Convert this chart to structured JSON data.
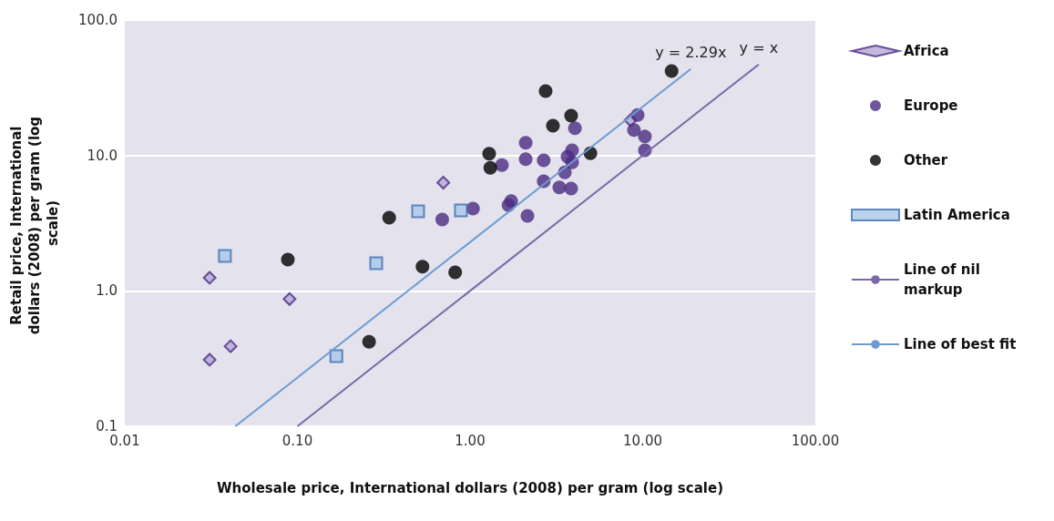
{
  "chart_data": {
    "type": "scatter",
    "xlabel": "Wholesale price, International dollars (2008) per gram (log scale)",
    "ylabel": "Retail price, International dollars (2008) per gram (log scale)",
    "log": "xy",
    "grid": "y",
    "legend": "right",
    "xlim": [
      0.01,
      100
    ],
    "xticks": [
      0.01,
      {
        "value": 0.1,
        "label": "0.10"
      },
      {
        "value": 1,
        "label": "1.00"
      },
      {
        "value": 10,
        "label": "10.00"
      },
      {
        "value": 100,
        "label": "100.00"
      }
    ],
    "ylim": [
      0.1,
      100
    ],
    "yticks": [
      0.1,
      {
        "value": 1,
        "label": "1.0"
      },
      {
        "value": 10,
        "label": "10.0"
      },
      {
        "value": 100,
        "label": "100.0"
      }
    ],
    "annotations": [
      "y = 2.29x",
      "y = x"
    ],
    "series": [
      {
        "name": "Africa",
        "marker": "diamond",
        "color": "#b4a7d6",
        "x": [
          0.031,
          0.031,
          0.041,
          0.09,
          0.7,
          8.5
        ],
        "values": [
          1.25,
          0.31,
          0.39,
          0.87,
          6.3,
          18.2
        ]
      },
      {
        "name": "Europe",
        "marker": "circle",
        "color": "#4b2c82",
        "x": [
          0.69,
          1.04,
          1.53,
          1.67,
          1.73,
          2.15,
          2.1,
          2.1,
          2.67,
          2.67,
          3.29,
          3.85,
          3.54,
          3.67,
          3.9,
          3.9,
          4.05,
          9.35,
          8.9,
          10.3,
          10.3
        ],
        "values": [
          3.37,
          4.05,
          8.5,
          4.3,
          4.6,
          3.58,
          12.4,
          9.4,
          9.2,
          6.45,
          5.8,
          5.7,
          7.5,
          9.8,
          10.9,
          8.9,
          15.9,
          19.9,
          15.4,
          13.8,
          10.9
        ]
      },
      {
        "name": "Other",
        "marker": "circle",
        "color": "#000000",
        "x": [
          0.088,
          0.34,
          0.53,
          0.82,
          0.26,
          2.74,
          3.85,
          3.02,
          1.29,
          1.31,
          4.98,
          14.7
        ],
        "values": [
          1.7,
          3.47,
          1.51,
          1.37,
          0.42,
          29.9,
          19.7,
          16.6,
          10.3,
          8.1,
          10.4,
          42
        ]
      },
      {
        "name": "Latin America",
        "marker": "square",
        "color": "#a9c8e8",
        "x": [
          0.038,
          0.286,
          0.168,
          0.5,
          0.885
        ],
        "values": [
          1.81,
          1.6,
          0.33,
          3.87,
          3.93
        ]
      },
      {
        "name": "Line of nil markup",
        "type": "line",
        "marker": "none",
        "color": "#7a68a8",
        "x": [
          0.1,
          47
        ],
        "values": [
          0.1,
          47
        ]
      },
      {
        "name": "Line of best fit",
        "type": "line",
        "marker": "none",
        "color": "#6d9bd1",
        "x": [
          0.0437,
          19
        ],
        "values": [
          0.1,
          43.5
        ]
      }
    ]
  }
}
